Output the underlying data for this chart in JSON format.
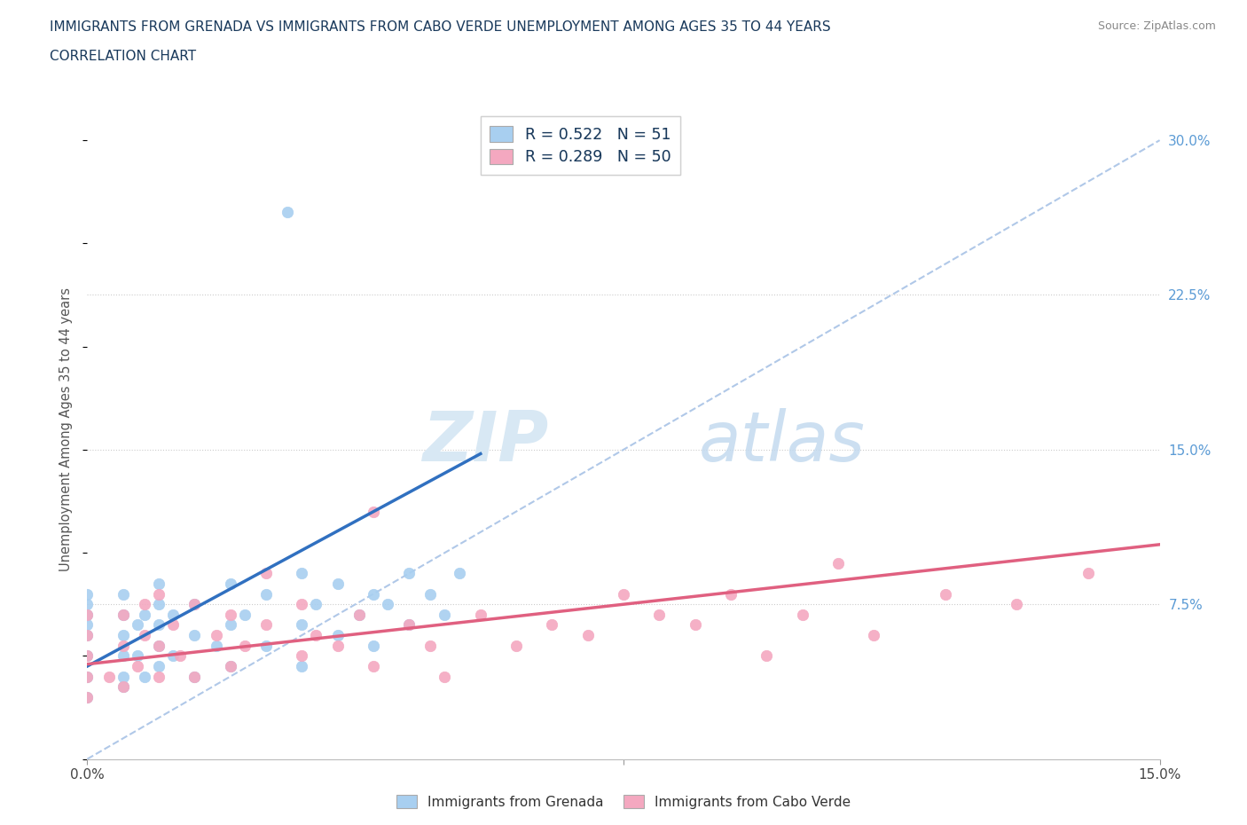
{
  "title_line1": "IMMIGRANTS FROM GRENADA VS IMMIGRANTS FROM CABO VERDE UNEMPLOYMENT AMONG AGES 35 TO 44 YEARS",
  "title_line2": "CORRELATION CHART",
  "source": "Source: ZipAtlas.com",
  "ylabel": "Unemployment Among Ages 35 to 44 years",
  "xlim": [
    0.0,
    0.15
  ],
  "ylim": [
    0.0,
    0.32
  ],
  "grenada_R": 0.522,
  "grenada_N": 51,
  "caboverde_R": 0.289,
  "caboverde_N": 50,
  "grenada_color": "#a8cff0",
  "caboverde_color": "#f4a8c0",
  "grenada_line_color": "#3070c0",
  "caboverde_line_color": "#e06080",
  "diagonal_color": "#b0c8e8",
  "grenada_scatter_x": [
    0.0,
    0.0,
    0.0,
    0.0,
    0.0,
    0.0,
    0.0,
    0.0,
    0.005,
    0.005,
    0.005,
    0.005,
    0.005,
    0.005,
    0.007,
    0.007,
    0.008,
    0.008,
    0.01,
    0.01,
    0.01,
    0.01,
    0.01,
    0.012,
    0.012,
    0.015,
    0.015,
    0.015,
    0.018,
    0.02,
    0.02,
    0.02,
    0.022,
    0.025,
    0.025,
    0.03,
    0.03,
    0.03,
    0.032,
    0.035,
    0.035,
    0.038,
    0.04,
    0.04,
    0.042,
    0.045,
    0.045,
    0.048,
    0.05,
    0.052,
    0.028
  ],
  "grenada_scatter_y": [
    0.03,
    0.04,
    0.05,
    0.06,
    0.065,
    0.07,
    0.075,
    0.08,
    0.035,
    0.04,
    0.05,
    0.06,
    0.07,
    0.08,
    0.05,
    0.065,
    0.04,
    0.07,
    0.045,
    0.055,
    0.065,
    0.075,
    0.085,
    0.05,
    0.07,
    0.04,
    0.06,
    0.075,
    0.055,
    0.045,
    0.065,
    0.085,
    0.07,
    0.055,
    0.08,
    0.045,
    0.065,
    0.09,
    0.075,
    0.06,
    0.085,
    0.07,
    0.055,
    0.08,
    0.075,
    0.065,
    0.09,
    0.08,
    0.07,
    0.09,
    0.265
  ],
  "caboverde_scatter_x": [
    0.0,
    0.0,
    0.0,
    0.0,
    0.0,
    0.003,
    0.005,
    0.005,
    0.005,
    0.007,
    0.008,
    0.008,
    0.01,
    0.01,
    0.01,
    0.012,
    0.013,
    0.015,
    0.015,
    0.018,
    0.02,
    0.02,
    0.022,
    0.025,
    0.025,
    0.03,
    0.03,
    0.032,
    0.035,
    0.038,
    0.04,
    0.04,
    0.045,
    0.048,
    0.05,
    0.055,
    0.06,
    0.065,
    0.07,
    0.075,
    0.08,
    0.085,
    0.09,
    0.095,
    0.1,
    0.105,
    0.11,
    0.12,
    0.13,
    0.14
  ],
  "caboverde_scatter_y": [
    0.03,
    0.04,
    0.05,
    0.06,
    0.07,
    0.04,
    0.035,
    0.055,
    0.07,
    0.045,
    0.06,
    0.075,
    0.04,
    0.055,
    0.08,
    0.065,
    0.05,
    0.04,
    0.075,
    0.06,
    0.045,
    0.07,
    0.055,
    0.065,
    0.09,
    0.05,
    0.075,
    0.06,
    0.055,
    0.07,
    0.045,
    0.12,
    0.065,
    0.055,
    0.04,
    0.07,
    0.055,
    0.065,
    0.06,
    0.08,
    0.07,
    0.065,
    0.08,
    0.05,
    0.07,
    0.095,
    0.06,
    0.08,
    0.075,
    0.09
  ],
  "grenada_line_x": [
    0.0,
    0.055
  ],
  "grenada_line_y": [
    0.045,
    0.148
  ],
  "caboverde_line_x": [
    0.0,
    0.15
  ],
  "caboverde_line_y": [
    0.046,
    0.104
  ]
}
